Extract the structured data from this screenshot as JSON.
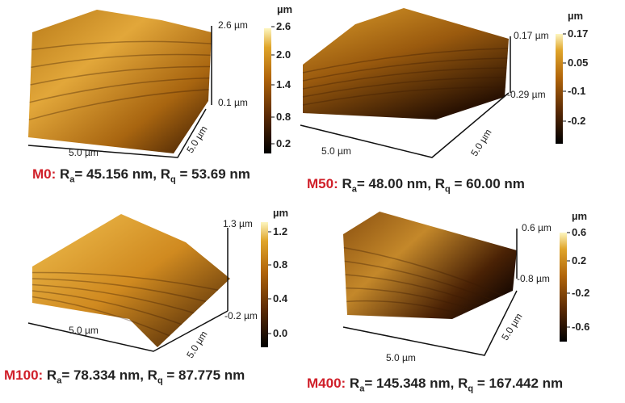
{
  "colors": {
    "label_red": "#d0202a",
    "colormap": [
      "#000000",
      "#5a2a05",
      "#b0640a",
      "#e0a52a",
      "#fdf6c0"
    ]
  },
  "panels": [
    {
      "id": "m0",
      "z_max": "2.6 µm",
      "z_min": "0.1 µm",
      "x_len": "5.0 µm",
      "y_len": "5.0 µm",
      "colorbar": {
        "unit": "µm",
        "ticks": [
          "2.6",
          "2.0",
          "1.4",
          "0.8",
          "0.2"
        ]
      },
      "caption": {
        "label": "M0:",
        "ra_symbol": "R",
        "ra_sub": "a",
        "ra_text": "= 45.156 nm,",
        "rq_symbol": "R",
        "rq_sub": "q",
        "rq_text": "= 53.69 nm"
      }
    },
    {
      "id": "m50",
      "z_max": "0.17 µm",
      "z_min": "-0.29 µm",
      "x_len": "5.0 µm",
      "y_len": "5.0 µm",
      "colorbar": {
        "unit": "µm",
        "ticks": [
          "0.17",
          "0.05",
          "-0.1",
          "-0.2"
        ]
      },
      "caption": {
        "label": "M50:",
        "ra_symbol": "R",
        "ra_sub": "a",
        "ra_text": "= 48.00 nm,",
        "rq_symbol": "R",
        "rq_sub": "q",
        "rq_text": "= 60.00 nm"
      }
    },
    {
      "id": "m100",
      "z_max": "1.3 µm",
      "z_min": "-0.2 µm",
      "x_len": "5.0 µm",
      "y_len": "5.0 µm",
      "colorbar": {
        "unit": "µm",
        "ticks": [
          "1.2",
          "0.8",
          "0.4",
          "0.0"
        ]
      },
      "caption": {
        "label": "M100:",
        "ra_symbol": "R",
        "ra_sub": "a",
        "ra_text": "= 78.334 nm,",
        "rq_symbol": "R",
        "rq_sub": "q",
        "rq_text": "= 87.775 nm"
      }
    },
    {
      "id": "m400",
      "z_max": "0.6 µm",
      "z_min": "-0.8 µm",
      "x_len": "5.0 µm",
      "y_len": "5.0 µm",
      "colorbar": {
        "unit": "µm",
        "ticks": [
          "0.6",
          "0.2",
          "-0.2",
          "-0.6"
        ]
      },
      "caption": {
        "label": "M400:",
        "ra_symbol": "R",
        "ra_sub": "a",
        "ra_text": "= 145.348 nm,",
        "rq_symbol": "R",
        "rq_sub": "q",
        "rq_text": "= 167.442 nm"
      }
    }
  ]
}
